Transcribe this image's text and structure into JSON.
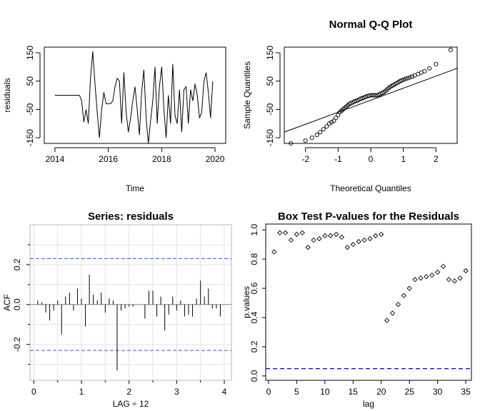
{
  "chart_data": [
    {
      "type": "line",
      "xlabel": "Time",
      "ylabel": "residuals",
      "xlim": [
        2013.6,
        2020.4
      ],
      "ylim": [
        -170,
        170
      ],
      "xticks": [
        2014,
        2016,
        2018,
        2020
      ],
      "xtick_labels": [
        "2014",
        "2016",
        "2018",
        "2020"
      ],
      "yticks": [
        -150,
        -50,
        50,
        150
      ],
      "ytick_labels": [
        "-150",
        "-50",
        "50",
        "150"
      ],
      "series": [
        {
          "x": [
            2014.0,
            2014.0833,
            2014.1667,
            2014.25,
            2014.3333,
            2014.4167,
            2014.5,
            2014.5833,
            2014.6667,
            2014.75,
            2014.8333,
            2014.9167,
            2015.0,
            2015.0833,
            2015.1667,
            2015.25,
            2015.3333,
            2015.4167,
            2015.5,
            2015.5833,
            2015.6667,
            2015.75,
            2015.8333,
            2015.9167,
            2016.0,
            2016.0833,
            2016.1667,
            2016.25,
            2016.3333,
            2016.4167,
            2016.5,
            2016.5833,
            2016.6667,
            2016.75,
            2016.8333,
            2016.9167,
            2017.0,
            2017.0833,
            2017.1667,
            2017.25,
            2017.3333,
            2017.4167,
            2017.5,
            2017.5833,
            2017.6667,
            2017.75,
            2017.8333,
            2017.9167,
            2018.0,
            2018.0833,
            2018.1667,
            2018.25,
            2018.3333,
            2018.4167,
            2018.5,
            2018.5833,
            2018.6667,
            2018.75,
            2018.8333,
            2018.9167,
            2019.0,
            2019.0833,
            2019.1667,
            2019.25,
            2019.3333,
            2019.4167,
            2019.5,
            2019.5833,
            2019.6667,
            2019.75,
            2019.8333,
            2019.9167
          ],
          "y": [
            0,
            0,
            0,
            0,
            0,
            0,
            0,
            0,
            0,
            0,
            0,
            0,
            -20,
            -95,
            -50,
            -100,
            60,
            155,
            40,
            -60,
            -150,
            -50,
            10,
            -30,
            -30,
            -30,
            -20,
            30,
            60,
            50,
            -100,
            80,
            -60,
            -130,
            -80,
            -20,
            30,
            -50,
            -140,
            10,
            90,
            -80,
            -170,
            -90,
            -20,
            100,
            -100,
            30,
            100,
            -50,
            -150,
            0,
            -100,
            110,
            -70,
            -100,
            20,
            -130,
            20,
            30,
            -100,
            20,
            -20,
            40,
            0,
            -80,
            -60,
            50,
            80,
            10,
            -80,
            50
          ]
        }
      ]
    },
    {
      "type": "scatter",
      "title": "Normal Q-Q Plot",
      "xlabel": "Theoretical Quantiles",
      "ylabel": "Sample Quantiles",
      "xlim": [
        -2.65,
        2.65
      ],
      "ylim": [
        -170,
        170
      ],
      "xticks": [
        -2,
        -1,
        0,
        1,
        2
      ],
      "xtick_labels": [
        "-2",
        "-1",
        "0",
        "1",
        "2"
      ],
      "yticks": [
        -150,
        -50,
        50,
        150
      ],
      "ytick_labels": [
        "-150",
        "-50",
        "50",
        "150"
      ],
      "x": [
        -2.45,
        -2.0,
        -1.8,
        -1.65,
        -1.55,
        -1.45,
        -1.35,
        -1.27,
        -1.2,
        -1.13,
        -1.07,
        -1.0,
        -0.95,
        -0.9,
        -0.85,
        -0.8,
        -0.75,
        -0.7,
        -0.65,
        -0.6,
        -0.55,
        -0.5,
        -0.45,
        -0.4,
        -0.35,
        -0.3,
        -0.25,
        -0.2,
        -0.15,
        -0.1,
        -0.05,
        0.0,
        0.05,
        0.1,
        0.15,
        0.2,
        0.25,
        0.3,
        0.35,
        0.4,
        0.45,
        0.5,
        0.55,
        0.6,
        0.65,
        0.7,
        0.75,
        0.8,
        0.85,
        0.9,
        0.95,
        1.0,
        1.07,
        1.13,
        1.2,
        1.27,
        1.35,
        1.45,
        1.55,
        1.65,
        1.8,
        2.0,
        2.45
      ],
      "y": [
        -170,
        -160,
        -150,
        -140,
        -130,
        -120,
        -110,
        -100,
        -95,
        -90,
        -80,
        -70,
        -60,
        -55,
        -50,
        -45,
        -40,
        -35,
        -30,
        -28,
        -25,
        -22,
        -20,
        -18,
        -15,
        -12,
        -10,
        -8,
        -5,
        -3,
        -2,
        0,
        0,
        0,
        0,
        0,
        2,
        5,
        8,
        10,
        15,
        20,
        25,
        30,
        33,
        36,
        40,
        43,
        46,
        50,
        52,
        55,
        58,
        60,
        63,
        66,
        70,
        75,
        80,
        85,
        95,
        110,
        160
      ],
      "reference_line": {
        "x": [
          -2.65,
          2.65
        ],
        "y": [
          -130,
          95
        ]
      }
    },
    {
      "type": "bar",
      "title": "Series:  residuals",
      "xlabel": "LAG ÷ 12",
      "ylabel": "ACF",
      "xlim": [
        -0.08,
        4.15
      ],
      "ylim": [
        -0.38,
        0.4
      ],
      "xticks": [
        0,
        1,
        2,
        3,
        4
      ],
      "xtick_labels": [
        "0",
        "1",
        "2",
        "3",
        "4"
      ],
      "yticks": [
        -0.2,
        0.0,
        0.2
      ],
      "ytick_labels": [
        "-0.2",
        "0.0",
        "0.2"
      ],
      "grid": true,
      "confidence_band": 0.23,
      "x": [
        0.0833,
        0.1667,
        0.25,
        0.3333,
        0.4167,
        0.5,
        0.5833,
        0.6667,
        0.75,
        0.8333,
        0.9167,
        1.0,
        1.0833,
        1.1667,
        1.25,
        1.3333,
        1.4167,
        1.5,
        1.5833,
        1.6667,
        1.75,
        1.8333,
        1.9167,
        2.0,
        2.0833,
        2.1667,
        2.25,
        2.3333,
        2.4167,
        2.5,
        2.5833,
        2.6667,
        2.75,
        2.8333,
        2.9167,
        3.0,
        3.0833,
        3.1667,
        3.25,
        3.3333,
        3.4167,
        3.5,
        3.5833,
        3.6667,
        3.75,
        3.8333,
        3.9167
      ],
      "values": [
        0.02,
        0.01,
        -0.04,
        -0.08,
        -0.03,
        0.02,
        -0.15,
        0.04,
        0.06,
        -0.03,
        0.08,
        0.03,
        -0.11,
        0.15,
        0.05,
        0.02,
        0.06,
        -0.04,
        0.03,
        0.02,
        -0.33,
        -0.03,
        -0.02,
        -0.01,
        -0.01,
        0.0,
        0.0,
        -0.07,
        0.07,
        0.07,
        -0.06,
        0.04,
        -0.13,
        -0.05,
        0.04,
        -0.03,
        0.02,
        -0.06,
        -0.05,
        -0.06,
        0.03,
        0.12,
        0.04,
        0.08,
        -0.02,
        -0.02,
        -0.06
      ]
    },
    {
      "type": "scatter",
      "title": "Box Test P-values for the Residuals",
      "xlabel": "lag",
      "ylabel": "p.values",
      "xlim": [
        -0.5,
        36
      ],
      "ylim": [
        -0.03,
        1.04
      ],
      "xticks": [
        0,
        5,
        10,
        15,
        20,
        25,
        30,
        35
      ],
      "xtick_labels": [
        "0",
        "5",
        "10",
        "15",
        "20",
        "25",
        "30",
        "35"
      ],
      "yticks": [
        0.0,
        0.2,
        0.4,
        0.6,
        0.8,
        1.0
      ],
      "ytick_labels": [
        "0.0",
        "0.2",
        "0.4",
        "0.6",
        "0.8",
        "1.0"
      ],
      "significance_line": 0.05,
      "x": [
        1,
        2,
        3,
        4,
        5,
        6,
        7,
        8,
        9,
        10,
        11,
        12,
        13,
        14,
        15,
        16,
        17,
        18,
        19,
        20,
        21,
        22,
        23,
        24,
        25,
        26,
        27,
        28,
        29,
        30,
        31,
        32,
        33,
        34,
        35
      ],
      "y": [
        0.85,
        0.98,
        0.98,
        0.93,
        0.97,
        0.98,
        0.88,
        0.93,
        0.94,
        0.96,
        0.96,
        0.97,
        0.95,
        0.88,
        0.9,
        0.92,
        0.93,
        0.94,
        0.96,
        0.97,
        0.38,
        0.43,
        0.49,
        0.55,
        0.6,
        0.66,
        0.67,
        0.68,
        0.69,
        0.71,
        0.75,
        0.66,
        0.65,
        0.67,
        0.72
      ]
    }
  ]
}
